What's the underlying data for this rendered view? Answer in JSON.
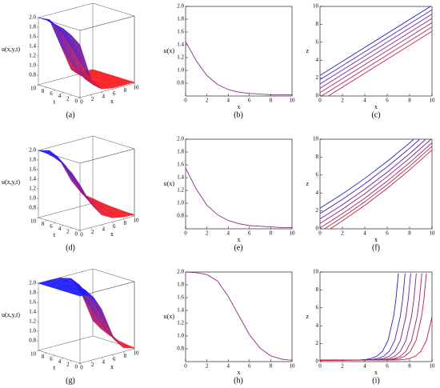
{
  "chart_data": [
    {
      "type": "surface",
      "label": "(a)",
      "zlabel": "u(x,y,t)",
      "xlabel": "x",
      "tlabel": "t",
      "x": [
        0,
        2,
        4,
        6,
        8,
        10
      ],
      "t": [
        0,
        2,
        4,
        6,
        8,
        10
      ],
      "z": [
        [
          1.7,
          0.94,
          0.66,
          0.62,
          0.62,
          0.62
        ],
        [
          1.84,
          1.15,
          0.69,
          0.63,
          0.62,
          0.62
        ],
        [
          1.93,
          1.4,
          0.76,
          0.63,
          0.62,
          0.62
        ],
        [
          1.97,
          1.63,
          0.89,
          0.65,
          0.62,
          0.62
        ],
        [
          2.0,
          1.8,
          1.08,
          0.68,
          0.63,
          0.62
        ],
        [
          2.0,
          1.9,
          1.32,
          0.74,
          0.63,
          0.62
        ]
      ],
      "xlim": [
        0,
        10
      ],
      "tlim": [
        0,
        10
      ],
      "zlim": [
        0.6,
        2.0
      ],
      "xticks": [
        0,
        2,
        4,
        6,
        8,
        10
      ],
      "tticks": [
        0,
        2,
        4,
        6,
        8,
        10
      ],
      "zticks": [
        0.8,
        {
          "value": 1,
          "label": "1.0"
        },
        1.2,
        1.4,
        1.6,
        1.8,
        {
          "value": 2,
          "label": "2.0"
        }
      ],
      "high_color": "#1a1aff",
      "low_color": "#ff1a1a"
    },
    {
      "type": "line",
      "label": "(b)",
      "ylabel": "u(x)",
      "xlabel": "x",
      "x": [
        0,
        1,
        2,
        3,
        4,
        5,
        6,
        7,
        8,
        9,
        10
      ],
      "values": [
        1.45,
        1.15,
        0.92,
        0.78,
        0.7,
        0.66,
        0.64,
        0.63,
        0.62,
        0.62,
        0.62
      ],
      "color": "#8a2f8a",
      "xlim": [
        0,
        10
      ],
      "ylim": [
        0.6,
        2.0
      ],
      "xticks": [
        0,
        2,
        4,
        6,
        8,
        10
      ],
      "yticks": [
        0.8,
        {
          "value": 1,
          "label": "1.0"
        },
        1.2,
        1.4,
        1.6,
        1.8,
        {
          "value": 2,
          "label": "2.0"
        }
      ]
    },
    {
      "type": "line",
      "label": "(c)",
      "ylabel": "z",
      "xlabel": "x",
      "series": [
        {
          "color": "#2020c8",
          "x": [
            0,
            9.87
          ],
          "values": [
            2.3,
            10
          ]
        },
        {
          "color": "#4a20b0",
          "x": [
            0,
            10
          ],
          "values": [
            1.82,
            9.62
          ]
        },
        {
          "color": "#6a2098",
          "x": [
            0,
            10
          ],
          "values": [
            1.34,
            9.14
          ]
        },
        {
          "color": "#882080",
          "x": [
            0,
            10
          ],
          "values": [
            0.86,
            8.66
          ]
        },
        {
          "color": "#a02068",
          "x": [
            0,
            10
          ],
          "values": [
            0.38,
            8.18
          ]
        },
        {
          "color": "#b42050",
          "x": [
            0.13,
            10
          ],
          "values": [
            0,
            7.7
          ]
        },
        {
          "color": "#c42030",
          "x": [
            0.74,
            10
          ],
          "values": [
            0,
            7.22
          ]
        }
      ],
      "xlim": [
        0,
        10
      ],
      "ylim": [
        0,
        10
      ],
      "xticks": [
        0,
        2,
        4,
        6,
        8,
        10
      ],
      "yticks": [
        0,
        2,
        4,
        6,
        8,
        10
      ]
    },
    {
      "type": "surface",
      "label": "(d)",
      "zlabel": "u(x,y,t)",
      "xlabel": "x",
      "tlabel": "t",
      "x": [
        0,
        2,
        4,
        6,
        8,
        10
      ],
      "t": [
        0,
        2,
        4,
        6,
        8,
        10
      ],
      "z": [
        [
          1.55,
          1.1,
          0.8,
          0.68,
          0.64,
          0.63
        ],
        [
          1.75,
          1.3,
          0.92,
          0.73,
          0.66,
          0.63
        ],
        [
          1.88,
          1.52,
          1.08,
          0.8,
          0.68,
          0.64
        ],
        [
          1.95,
          1.72,
          1.28,
          0.9,
          0.72,
          0.65
        ],
        [
          1.99,
          1.86,
          1.48,
          1.04,
          0.78,
          0.67
        ],
        [
          2.0,
          1.94,
          1.66,
          1.2,
          0.86,
          0.7
        ]
      ],
      "xlim": [
        0,
        10
      ],
      "tlim": [
        0,
        10
      ],
      "zlim": [
        0.6,
        2.0
      ],
      "xticks": [
        0,
        2,
        4,
        6,
        8,
        10
      ],
      "tticks": [
        0,
        2,
        4,
        6,
        8,
        10
      ],
      "zticks": [
        0.8,
        {
          "value": 1,
          "label": "1.0"
        },
        1.2,
        1.4,
        1.6,
        1.8,
        {
          "value": 2,
          "label": "2.0"
        }
      ],
      "high_color": "#1a1aff",
      "low_color": "#ff1a1a"
    },
    {
      "type": "line",
      "label": "(e)",
      "ylabel": "u(x)",
      "xlabel": "x",
      "x": [
        0,
        1,
        2,
        3,
        4,
        5,
        6,
        7,
        8,
        9,
        10
      ],
      "values": [
        1.55,
        1.22,
        0.97,
        0.82,
        0.73,
        0.68,
        0.65,
        0.64,
        0.63,
        0.62,
        0.62
      ],
      "color": "#8a2f8a",
      "xlim": [
        0,
        10
      ],
      "ylim": [
        0.6,
        2.0
      ],
      "xticks": [
        0,
        2,
        4,
        6,
        8,
        10
      ],
      "yticks": [
        0.8,
        {
          "value": 1,
          "label": "1.0"
        },
        1.2,
        1.4,
        1.6,
        1.8,
        {
          "value": 2,
          "label": "2.0"
        }
      ]
    },
    {
      "type": "line",
      "label": "(f)",
      "ylabel": "z",
      "xlabel": "x",
      "series": [
        {
          "color": "#2020c8",
          "x": [
            0,
            2,
            4,
            6,
            8,
            8.37
          ],
          "values": [
            2.3,
            3.88,
            5.62,
            7.52,
            9.58,
            10
          ]
        },
        {
          "color": "#4a20b0",
          "x": [
            0,
            2,
            4,
            6,
            8,
            8.9
          ],
          "values": [
            1.7,
            3.28,
            5.02,
            6.92,
            8.98,
            10
          ]
        },
        {
          "color": "#6a2098",
          "x": [
            0,
            2,
            4,
            6,
            8,
            9.45
          ],
          "values": [
            1.1,
            2.68,
            4.42,
            6.32,
            8.38,
            10
          ]
        },
        {
          "color": "#882080",
          "x": [
            0,
            2,
            4,
            6,
            8,
            9.92
          ],
          "values": [
            0.6,
            2.18,
            3.92,
            5.82,
            7.88,
            10
          ]
        },
        {
          "color": "#a02068",
          "x": [
            0,
            2,
            4,
            6,
            8,
            10
          ],
          "values": [
            0.1,
            1.68,
            3.42,
            5.32,
            7.38,
            9.6
          ]
        },
        {
          "color": "#b42050",
          "x": [
            0.4,
            2,
            4,
            6,
            8,
            10
          ],
          "values": [
            0,
            1.28,
            3.02,
            4.92,
            6.98,
            9.2
          ]
        },
        {
          "color": "#c42030",
          "x": [
            0.92,
            2,
            4,
            6,
            8,
            10
          ],
          "values": [
            0,
            0.88,
            2.62,
            4.52,
            6.58,
            8.8
          ]
        }
      ],
      "xlim": [
        0,
        10
      ],
      "ylim": [
        0,
        10
      ],
      "xticks": [
        0,
        2,
        4,
        6,
        8,
        10
      ],
      "yticks": [
        0,
        2,
        4,
        6,
        8,
        10
      ]
    },
    {
      "type": "surface",
      "label": "(g)",
      "zlabel": "u(x,y,t)",
      "xlabel": "x",
      "tlabel": "t",
      "x": [
        0,
        2,
        4,
        6,
        8,
        10
      ],
      "t": [
        0,
        2,
        4,
        6,
        8,
        10
      ],
      "z": [
        [
          2.0,
          1.96,
          1.6,
          1.0,
          0.68,
          0.62
        ],
        [
          2.0,
          1.98,
          1.8,
          1.25,
          0.78,
          0.64
        ],
        [
          2.0,
          1.99,
          1.9,
          1.5,
          0.92,
          0.67
        ],
        [
          2.0,
          2.0,
          1.95,
          1.7,
          1.1,
          0.72
        ],
        [
          2.0,
          2.0,
          1.98,
          1.84,
          1.32,
          0.8
        ],
        [
          2.0,
          2.0,
          1.99,
          1.92,
          1.52,
          0.92
        ]
      ],
      "xlim": [
        0,
        10
      ],
      "tlim": [
        0,
        10
      ],
      "zlim": [
        0.6,
        2.0
      ],
      "xticks": [
        0,
        2,
        4,
        6,
        8,
        10
      ],
      "tticks": [
        0,
        2,
        4,
        6,
        8,
        10
      ],
      "zticks": [
        0.8,
        {
          "value": 1,
          "label": "1.0"
        },
        1.2,
        1.4,
        1.6,
        1.8,
        {
          "value": 2,
          "label": "2.0"
        }
      ],
      "high_color": "#1a1aff",
      "low_color": "#ff1a1a"
    },
    {
      "type": "line",
      "label": "(h)",
      "ylabel": "u(x)",
      "xlabel": "x",
      "x": [
        0,
        1,
        2,
        3,
        4,
        5,
        6,
        7,
        8,
        9,
        10
      ],
      "values": [
        2.0,
        1.99,
        1.96,
        1.86,
        1.62,
        1.32,
        1.02,
        0.81,
        0.69,
        0.64,
        0.62
      ],
      "color": "#8a2f8a",
      "xlim": [
        0,
        10
      ],
      "ylim": [
        0.6,
        2.0
      ],
      "xticks": [
        0,
        2,
        4,
        6,
        8,
        10
      ],
      "yticks": [
        0.8,
        {
          "value": 1,
          "label": "1.0"
        },
        1.2,
        1.4,
        1.6,
        1.8,
        {
          "value": 2,
          "label": "2.0"
        }
      ]
    },
    {
      "type": "line",
      "label": "(i)",
      "ylabel": "z",
      "xlabel": "x",
      "series": [
        {
          "color": "#2020c8",
          "x": [
            0,
            3.58,
            4.08,
            4.58,
            5.08,
            5.58,
            6.08,
            6.58,
            6.78,
            7.0
          ],
          "values": [
            0.15,
            0.19,
            0.24,
            0.35,
            0.6,
            1.15,
            2.38,
            5.1,
            6.97,
            9.85
          ]
        },
        {
          "color": "#4a20b0",
          "x": [
            0,
            4.18,
            4.68,
            5.18,
            5.68,
            6.18,
            6.68,
            7.18,
            7.38,
            7.6
          ],
          "values": [
            0.15,
            0.19,
            0.24,
            0.35,
            0.6,
            1.15,
            2.38,
            5.1,
            6.97,
            9.85
          ]
        },
        {
          "color": "#6a2098",
          "x": [
            0,
            4.68,
            5.18,
            5.68,
            6.18,
            6.68,
            7.18,
            7.68,
            7.88,
            8.1
          ],
          "values": [
            0.15,
            0.19,
            0.24,
            0.35,
            0.6,
            1.15,
            2.38,
            5.1,
            6.97,
            9.85
          ]
        },
        {
          "color": "#882080",
          "x": [
            0,
            5.18,
            5.68,
            6.18,
            6.68,
            7.18,
            7.68,
            8.18,
            8.38,
            8.6
          ],
          "values": [
            0.15,
            0.19,
            0.24,
            0.35,
            0.6,
            1.15,
            2.38,
            5.1,
            6.97,
            9.85
          ]
        },
        {
          "color": "#a02068",
          "x": [
            0,
            5.68,
            6.18,
            6.68,
            7.18,
            7.68,
            8.18,
            8.68,
            8.88,
            9.1
          ],
          "values": [
            0.15,
            0.19,
            0.24,
            0.35,
            0.6,
            1.15,
            2.38,
            5.1,
            6.97,
            9.85
          ]
        },
        {
          "color": "#b42050",
          "x": [
            0,
            6.08,
            6.58,
            7.08,
            7.58,
            8.08,
            8.58,
            9.08,
            9.28,
            9.5
          ],
          "values": [
            0.15,
            0.19,
            0.24,
            0.35,
            0.6,
            1.15,
            2.38,
            5.1,
            6.97,
            9.85
          ]
        },
        {
          "color": "#c42030",
          "x": [
            0,
            7.01,
            7.51,
            8.01,
            8.51,
            9.01,
            9.51,
            10
          ],
          "values": [
            0.15,
            0.19,
            0.24,
            0.35,
            0.6,
            1.15,
            2.38,
            5.0
          ]
        }
      ],
      "xlim": [
        0,
        10
      ],
      "ylim": [
        0,
        10
      ],
      "xticks": [
        0,
        2,
        4,
        6,
        8,
        10
      ],
      "yticks": [
        0,
        2,
        4,
        6,
        8,
        10
      ]
    }
  ]
}
